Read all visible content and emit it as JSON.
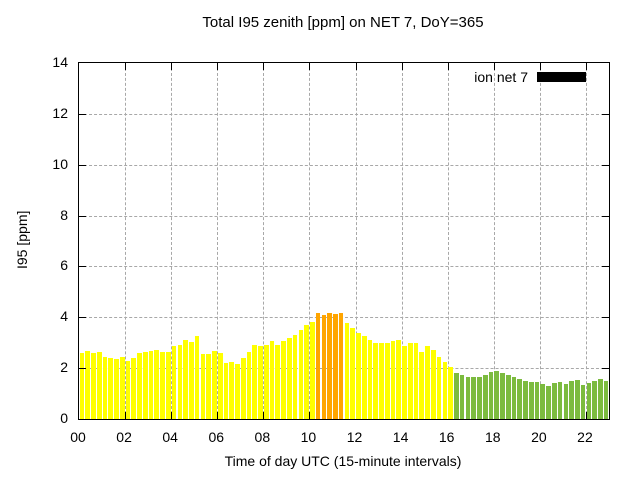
{
  "chart_data": {
    "type": "bar",
    "title": "Total I95 zenith [ppm] on NET 7, DoY=365",
    "xlabel": "Time of day UTC (15-minute intervals)",
    "ylabel": "I95 [ppm]",
    "ylim": [
      0,
      14
    ],
    "xlim_hours": [
      0,
      23
    ],
    "y_ticks": [
      0,
      2,
      4,
      6,
      8,
      10,
      12,
      14
    ],
    "x_ticks": [
      {
        "hour": 0,
        "label": "00"
      },
      {
        "hour": 2,
        "label": "02"
      },
      {
        "hour": 4,
        "label": "04"
      },
      {
        "hour": 6,
        "label": "06"
      },
      {
        "hour": 8,
        "label": "08"
      },
      {
        "hour": 10,
        "label": "10"
      },
      {
        "hour": 12,
        "label": "12"
      },
      {
        "hour": 14,
        "label": "14"
      },
      {
        "hour": 16,
        "label": "16"
      },
      {
        "hour": 18,
        "label": "18"
      },
      {
        "hour": 20,
        "label": "20"
      },
      {
        "hour": 22,
        "label": "22"
      }
    ],
    "grid": true,
    "legend": {
      "label": "ion net 7",
      "swatch_color": "#000000",
      "position": "top-right"
    },
    "interval_minutes": 15,
    "start_time": "00:00",
    "end_time": "22:45",
    "series": [
      {
        "name": "ion net 7",
        "values": [
          2.58,
          2.68,
          2.58,
          2.63,
          2.45,
          2.38,
          2.35,
          2.45,
          2.3,
          2.4,
          2.58,
          2.63,
          2.68,
          2.72,
          2.62,
          2.62,
          2.86,
          2.92,
          3.12,
          3.03,
          3.25,
          2.56,
          2.56,
          2.68,
          2.58,
          2.2,
          2.25,
          2.15,
          2.4,
          2.62,
          2.9,
          2.87,
          2.93,
          3.05,
          2.92,
          3.08,
          3.2,
          3.3,
          3.5,
          3.68,
          3.82,
          4.18,
          4.1,
          4.18,
          4.12,
          4.15,
          3.77,
          3.57,
          3.38,
          3.25,
          3.12,
          2.97,
          2.97,
          2.97,
          3.05,
          3.1,
          2.89,
          2.99,
          2.99,
          2.63,
          2.89,
          2.72,
          2.42,
          2.24,
          2.03,
          1.82,
          1.74,
          1.65,
          1.65,
          1.66,
          1.72,
          1.86,
          1.9,
          1.82,
          1.72,
          1.64,
          1.57,
          1.5,
          1.44,
          1.46,
          1.38,
          1.31,
          1.4,
          1.44,
          1.37,
          1.48,
          1.55,
          1.34,
          1.4,
          1.48,
          1.57,
          1.48
        ]
      }
    ],
    "color_segments": [
      {
        "start_index": 0,
        "end_index": 40,
        "color": "#ffff00",
        "note": "00:00-10:00 yellow"
      },
      {
        "start_index": 41,
        "end_index": 45,
        "color": "#ffa500",
        "note": "10:15-11:15 orange peak"
      },
      {
        "start_index": 46,
        "end_index": 64,
        "color": "#ffff00",
        "note": "11:30-16:00 yellow"
      },
      {
        "start_index": 65,
        "end_index": 91,
        "color": "#7cbb3f",
        "note": "16:15-22:45 green"
      }
    ],
    "colors": {
      "bar_yellow": "#ffff00",
      "bar_orange": "#ffa500",
      "bar_green": "#7cbb3f",
      "grid": "#a8a8a8",
      "axis": "#000000",
      "background": "#ffffff",
      "text": "#000000"
    }
  }
}
